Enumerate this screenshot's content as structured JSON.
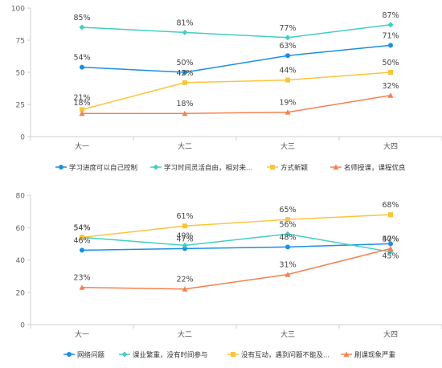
{
  "chart_data": [
    {
      "type": "line",
      "categories": [
        "大一",
        "大二",
        "大三",
        "大四"
      ],
      "ylim": [
        0,
        100
      ],
      "yticks": [
        0,
        25,
        50,
        75,
        100
      ],
      "grid": false,
      "legend_position": "bottom",
      "series": [
        {
          "name": "学习进度可以自己控制",
          "values": [
            54,
            50,
            63,
            71
          ],
          "labels": [
            "54%",
            "50%",
            "63%",
            "71%"
          ],
          "color": "#1a8fe3",
          "marker": "circle"
        },
        {
          "name": "学习时间灵活自由，相对来...",
          "values": [
            85,
            81,
            77,
            87
          ],
          "labels": [
            "85%",
            "81%",
            "77%",
            "87%"
          ],
          "color": "#40cfc4",
          "marker": "diamond"
        },
        {
          "name": "方式新颖",
          "values": [
            21,
            42,
            44,
            50
          ],
          "labels": [
            "21%",
            "42%",
            "44%",
            "50%"
          ],
          "color": "#fcc43c",
          "marker": "square"
        },
        {
          "name": "名师授课，课程优良",
          "values": [
            18,
            18,
            19,
            32
          ],
          "labels": [
            "18%",
            "18%",
            "19%",
            "32%"
          ],
          "color": "#f5804f",
          "marker": "triangle"
        }
      ]
    },
    {
      "type": "line",
      "categories": [
        "大一",
        "大二",
        "大三",
        "大四"
      ],
      "ylim": [
        0,
        80
      ],
      "yticks": [
        0,
        20,
        40,
        60,
        80
      ],
      "grid": false,
      "legend_position": "bottom",
      "series": [
        {
          "name": "网络问题",
          "values": [
            46,
            47,
            48,
            50
          ],
          "labels": [
            "46%",
            "47%",
            "48%",
            "50%"
          ],
          "color": "#1a8fe3",
          "marker": "circle"
        },
        {
          "name": "课业繁重，没有时间参与",
          "values": [
            54,
            49,
            56,
            45
          ],
          "labels": [
            "54%",
            "49%",
            "56%",
            "45%"
          ],
          "color": "#40cfc4",
          "marker": "diamond"
        },
        {
          "name": "没有互动，遇到问题不能及...",
          "values": [
            54,
            61,
            65,
            68
          ],
          "labels": [
            "54%",
            "61%",
            "65%",
            "68%"
          ],
          "color": "#fcc43c",
          "marker": "square"
        },
        {
          "name": "刷课现象严重",
          "values": [
            23,
            22,
            31,
            47
          ],
          "labels": [
            "23%",
            "22%",
            "31%",
            "47%"
          ],
          "color": "#f5804f",
          "marker": "triangle"
        }
      ]
    }
  ]
}
